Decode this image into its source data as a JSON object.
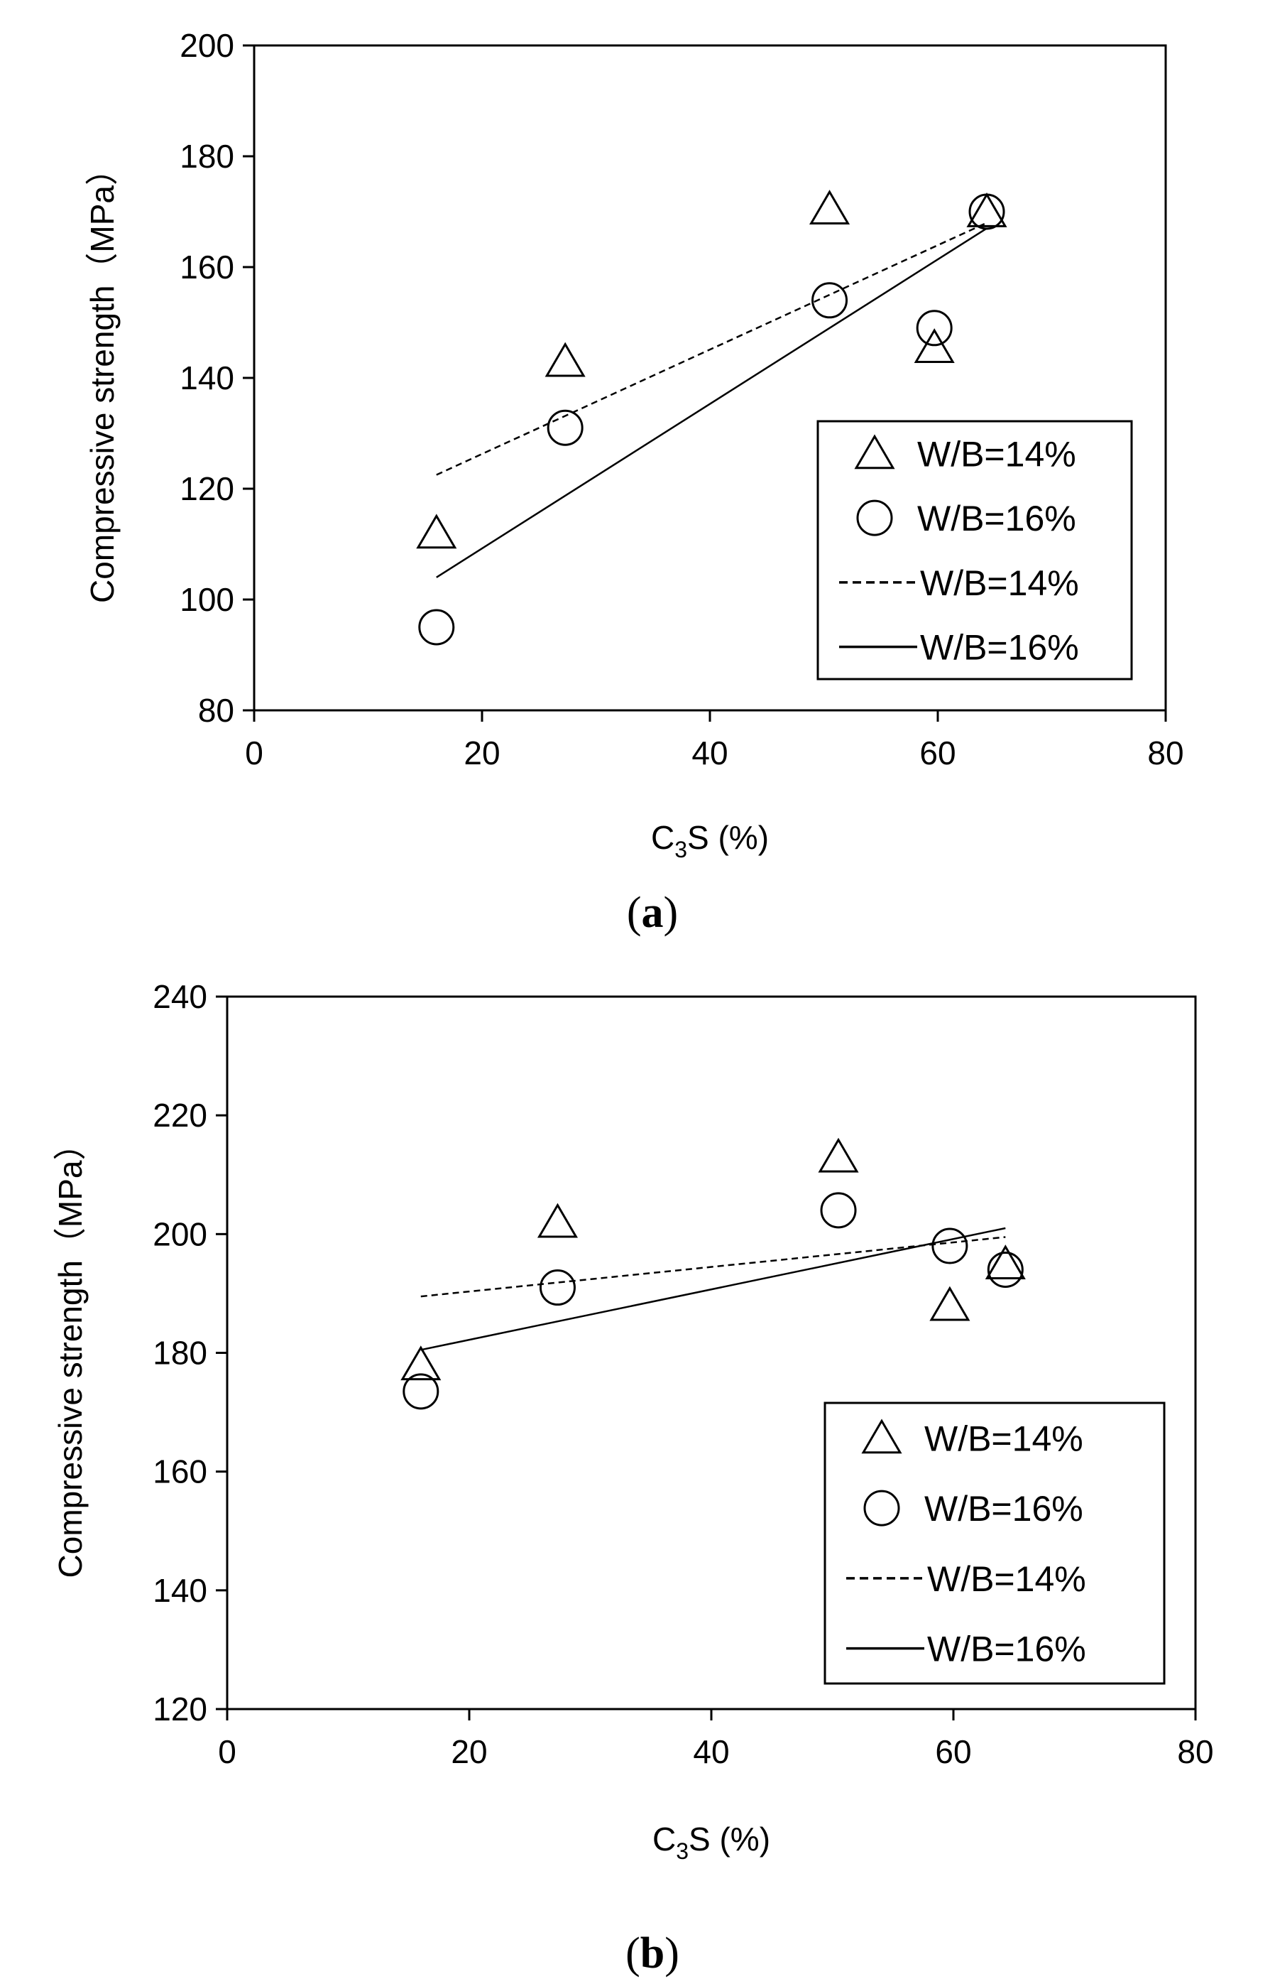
{
  "figure_labels": [
    "a",
    "b"
  ],
  "chart_data": [
    {
      "type": "scatter",
      "panel": "a",
      "xlabel": {
        "main": "C",
        "sub": "3",
        "rest": "S (%)"
      },
      "ylabel": "Compressive strength（MPa）",
      "xlim": [
        0,
        80
      ],
      "ylim": [
        80,
        200
      ],
      "xticks": [
        0,
        20,
        40,
        60,
        80
      ],
      "yticks": [
        80,
        100,
        120,
        140,
        160,
        180,
        200
      ],
      "legend_position": "bottom-right",
      "series": [
        {
          "name": "W/B=14%",
          "marker": "triangle",
          "points": [
            [
              16,
              112
            ],
            [
              27.3,
              143
            ],
            [
              50.5,
              170.5
            ],
            [
              59.7,
              145.5
            ],
            [
              64.3,
              170
            ]
          ]
        },
        {
          "name": "W/B=16%",
          "marker": "circle",
          "points": [
            [
              16,
              95
            ],
            [
              27.3,
              131
            ],
            [
              50.5,
              154
            ],
            [
              59.7,
              149
            ],
            [
              64.3,
              170
            ]
          ]
        }
      ],
      "fits": [
        {
          "name": "W/B=14%",
          "style": "dashed",
          "x": [
            16,
            64.3
          ],
          "y": [
            122.5,
            168
          ]
        },
        {
          "name": "W/B=16%",
          "style": "solid",
          "x": [
            16,
            64.3
          ],
          "y": [
            104,
            167
          ]
        }
      ]
    },
    {
      "type": "scatter",
      "panel": "b",
      "xlabel": {
        "main": "C",
        "sub": "3",
        "rest": "S (%)"
      },
      "ylabel": "Compressive strength（MPa）",
      "xlim": [
        0,
        80
      ],
      "ylim": [
        120,
        240
      ],
      "xticks": [
        0,
        20,
        40,
        60,
        80
      ],
      "yticks": [
        120,
        140,
        160,
        180,
        200,
        220,
        240
      ],
      "legend_position": "bottom-right",
      "series": [
        {
          "name": "W/B=14%",
          "marker": "triangle",
          "points": [
            [
              16,
              178
            ],
            [
              27.3,
              202
            ],
            [
              50.5,
              213
            ],
            [
              59.7,
              188
            ],
            [
              64.3,
              195
            ]
          ]
        },
        {
          "name": "W/B=16%",
          "marker": "circle",
          "points": [
            [
              16,
              173.5
            ],
            [
              27.3,
              191
            ],
            [
              50.5,
              204
            ],
            [
              59.7,
              198
            ],
            [
              64.3,
              194
            ]
          ]
        }
      ],
      "fits": [
        {
          "name": "W/B=14%",
          "style": "dashed",
          "x": [
            16,
            64.3
          ],
          "y": [
            189.5,
            199.5
          ]
        },
        {
          "name": "W/B=16%",
          "style": "solid",
          "x": [
            16,
            64.3
          ],
          "y": [
            180.5,
            201
          ]
        }
      ]
    }
  ]
}
